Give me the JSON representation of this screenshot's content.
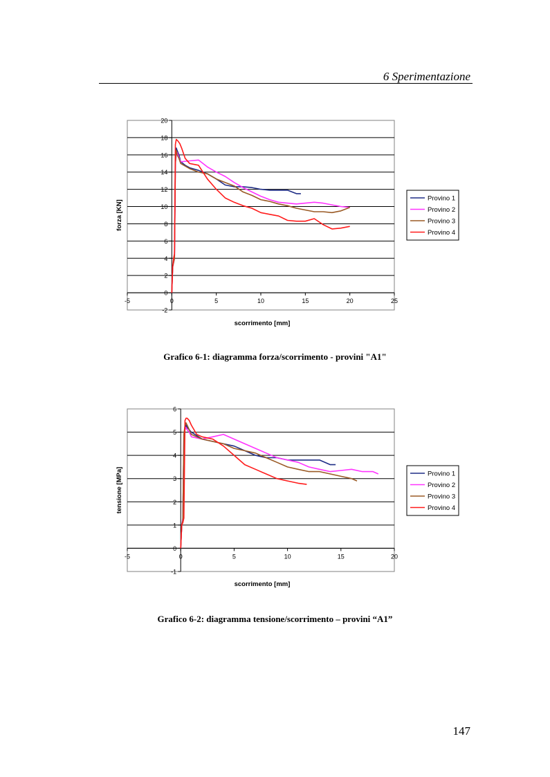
{
  "header": {
    "title": "6 Sperimentazione"
  },
  "page_number": "147",
  "captions": {
    "chart1": "Grafico 6-1: diagramma forza/scorrimento - provini \"A1\"",
    "chart2": "Grafico 6-2: diagramma tensione/scorrimento – provini “A1”"
  },
  "colors": {
    "Provino 1": "#1f2d86",
    "Provino 2": "#ff33ff",
    "Provino 3": "#9a5a25",
    "Provino 4": "#ff1a1a"
  },
  "chart_data": [
    {
      "type": "line",
      "xlabel": "scorrimento [mm]",
      "ylabel": "forza [KN]",
      "xlim": [
        -5,
        25
      ],
      "ylim": [
        -2,
        20
      ],
      "xticks": [
        -5,
        0,
        5,
        10,
        15,
        20,
        25
      ],
      "yticks": [
        -2,
        0,
        2,
        4,
        6,
        8,
        10,
        12,
        14,
        16,
        18,
        20
      ],
      "grid": "horizontal",
      "legend": "right",
      "series": [
        {
          "name": "Provino 1",
          "x": [
            0,
            0.1,
            0.3,
            0.4,
            0.5,
            0.6,
            0.8,
            1.0,
            1.5,
            2,
            3,
            4,
            5,
            6,
            7,
            8,
            9,
            10,
            11,
            12,
            13,
            14,
            14.5
          ],
          "y": [
            0,
            3,
            4,
            15,
            16.8,
            16.5,
            16,
            15.2,
            14.8,
            14.5,
            14.2,
            13.8,
            13.2,
            12.5,
            12.3,
            12.3,
            12.2,
            12,
            11.9,
            11.9,
            11.9,
            11.5,
            11.5
          ]
        },
        {
          "name": "Provino 2",
          "x": [
            0,
            0.1,
            0.3,
            0.4,
            0.5,
            0.6,
            0.8,
            1,
            2,
            3,
            4,
            5,
            6,
            7,
            8,
            9,
            10,
            11,
            12,
            13,
            14,
            15,
            16,
            17,
            18,
            19,
            20
          ],
          "y": [
            0,
            3,
            4,
            15,
            16,
            16.3,
            15.7,
            15.2,
            15.3,
            15.4,
            14.6,
            14,
            13.5,
            12.8,
            12.2,
            11.7,
            11.2,
            10.8,
            10.5,
            10.4,
            10.3,
            10.4,
            10.5,
            10.4,
            10.2,
            10,
            9.9
          ]
        },
        {
          "name": "Provino 3",
          "x": [
            0,
            0.1,
            0.3,
            0.4,
            0.5,
            0.6,
            0.8,
            1,
            2,
            3,
            4,
            5,
            6,
            7,
            8,
            9,
            10,
            11,
            12,
            13,
            14,
            15,
            16,
            17,
            18,
            19,
            20
          ],
          "y": [
            0,
            3,
            4,
            15,
            16.5,
            16,
            15.6,
            15,
            14.4,
            14,
            13.8,
            13.2,
            12.8,
            12.4,
            11.7,
            11.3,
            10.8,
            10.6,
            10.3,
            10.1,
            9.8,
            9.6,
            9.4,
            9.4,
            9.3,
            9.5,
            9.9
          ]
        },
        {
          "name": "Provino 4",
          "x": [
            0,
            0.1,
            0.2,
            0.3,
            0.4,
            0.5,
            0.7,
            0.9,
            1.1,
            1.5,
            2,
            3,
            4,
            5,
            6,
            7,
            8,
            9,
            10,
            11,
            12,
            13,
            14,
            15,
            16,
            17,
            18,
            19,
            20
          ],
          "y": [
            0,
            3,
            4,
            4.5,
            17.2,
            17.8,
            17.6,
            17.3,
            16.8,
            15.6,
            15,
            14.8,
            13.2,
            12,
            11,
            10.5,
            10.1,
            9.8,
            9.3,
            9.1,
            8.9,
            8.4,
            8.3,
            8.3,
            8.6,
            7.9,
            7.4,
            7.5,
            7.7
          ]
        }
      ]
    },
    {
      "type": "line",
      "xlabel": "scorrimento [mm]",
      "ylabel": "tensione [MPa]",
      "xlim": [
        -5,
        20
      ],
      "ylim": [
        -1,
        6
      ],
      "xticks": [
        -5,
        0,
        5,
        10,
        15,
        20
      ],
      "yticks": [
        -1,
        0,
        1,
        2,
        3,
        4,
        5,
        6
      ],
      "grid": "horizontal",
      "legend": "right",
      "series": [
        {
          "name": "Provino 1",
          "x": [
            0,
            0.1,
            0.2,
            0.3,
            0.4,
            0.5,
            0.6,
            0.8,
            1,
            2,
            3,
            4,
            5,
            6,
            7,
            8,
            9,
            10,
            11,
            12,
            13,
            14,
            14.5
          ],
          "y": [
            0,
            1,
            1.2,
            4.8,
            5.2,
            5.3,
            5.2,
            5.1,
            5,
            4.7,
            4.6,
            4.5,
            4.4,
            4.2,
            4,
            3.9,
            3.9,
            3.8,
            3.8,
            3.8,
            3.8,
            3.6,
            3.6
          ]
        },
        {
          "name": "Provino 2",
          "x": [
            0,
            0.1,
            0.2,
            0.3,
            0.4,
            0.5,
            0.6,
            0.8,
            1,
            2,
            3,
            4,
            5,
            6,
            7,
            8,
            9,
            10,
            11,
            12,
            13,
            14,
            15,
            16,
            17,
            18,
            18.5
          ],
          "y": [
            0,
            1,
            1.3,
            4.9,
            5.1,
            5.2,
            5.1,
            5,
            4.8,
            4.7,
            4.8,
            4.9,
            4.7,
            4.5,
            4.3,
            4.1,
            3.9,
            3.8,
            3.7,
            3.5,
            3.4,
            3.3,
            3.35,
            3.4,
            3.3,
            3.3,
            3.2
          ]
        },
        {
          "name": "Provino 3",
          "x": [
            0,
            0.1,
            0.2,
            0.3,
            0.4,
            0.5,
            0.6,
            0.8,
            1,
            2,
            3,
            4,
            5,
            6,
            7,
            8,
            9,
            10,
            11,
            12,
            13,
            14,
            15,
            16,
            16.5
          ],
          "y": [
            0,
            1,
            1.2,
            4.9,
            5.3,
            5.4,
            5.3,
            5.1,
            4.9,
            4.7,
            4.6,
            4.5,
            4.3,
            4.2,
            4.1,
            3.9,
            3.7,
            3.5,
            3.4,
            3.3,
            3.3,
            3.2,
            3.1,
            3.0,
            2.9
          ]
        },
        {
          "name": "Provino 4",
          "x": [
            0,
            0.1,
            0.2,
            0.3,
            0.4,
            0.5,
            0.6,
            0.8,
            1,
            1.5,
            2,
            3,
            4,
            5,
            6,
            7,
            8,
            9,
            10,
            11,
            11.8
          ],
          "y": [
            0,
            1,
            1.1,
            1.3,
            5.5,
            5.6,
            5.6,
            5.5,
            5.3,
            4.9,
            4.8,
            4.7,
            4.4,
            4,
            3.6,
            3.4,
            3.2,
            3,
            2.9,
            2.8,
            2.75
          ]
        }
      ]
    }
  ]
}
